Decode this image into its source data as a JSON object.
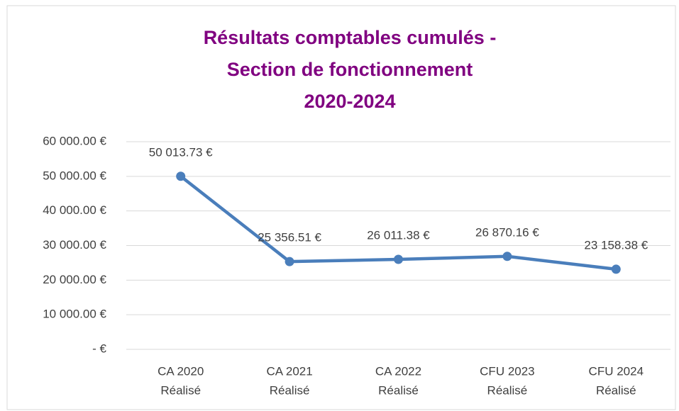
{
  "chart_data": {
    "type": "line",
    "title": [
      "Résultats comptables cumulés -",
      "Section de fonctionnement",
      "2020-2024"
    ],
    "categories": [
      [
        "CA 2020",
        "Réalisé"
      ],
      [
        "CA 2021",
        "Réalisé"
      ],
      [
        "CA 2022",
        "Réalisé"
      ],
      [
        "CFU 2023",
        "Réalisé"
      ],
      [
        "CFU 2024",
        "Réalisé"
      ]
    ],
    "series": [
      {
        "color": "#4a7ebb",
        "values": [
          50013.73,
          25356.51,
          26011.38,
          26870.16,
          23158.38
        ],
        "value_labels": [
          "50 013.73 €",
          "25 356.51 €",
          "26 011.38 €",
          "26 870.16 €",
          "23 158.38 €"
        ]
      }
    ],
    "ylim": [
      0,
      60000
    ],
    "yticks": [
      {
        "value": 0,
        "label": "-   €"
      },
      {
        "value": 10000,
        "label": "10 000.00 €"
      },
      {
        "value": 20000,
        "label": "20 000.00 €"
      },
      {
        "value": 30000,
        "label": "30 000.00 €"
      },
      {
        "value": 40000,
        "label": "40 000.00 €"
      },
      {
        "value": 50000,
        "label": "50 000.00 €"
      },
      {
        "value": 60000,
        "label": "60 000.00 €"
      }
    ],
    "grid": true
  }
}
